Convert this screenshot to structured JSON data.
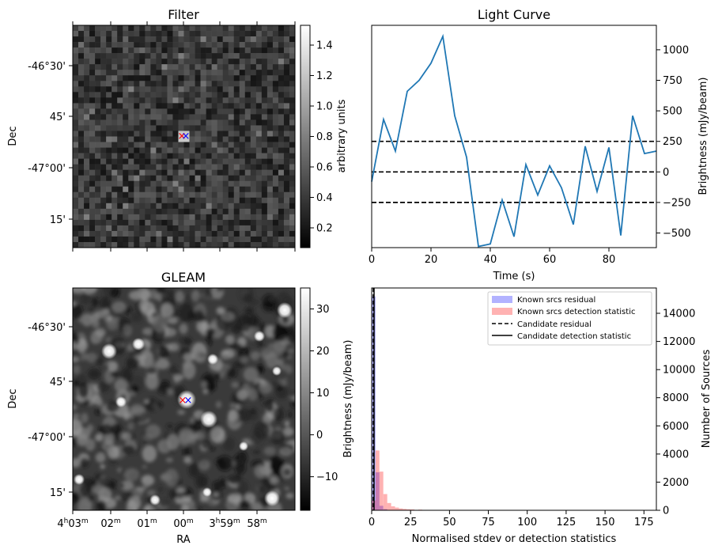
{
  "panels": {
    "filter": {
      "title": "Filter",
      "ylabel": "Dec",
      "dec_ticks": [
        "-46°30'",
        "45'",
        "-47°00'",
        "15'"
      ],
      "colorbar": {
        "label": "arbitrary units",
        "ticks": [
          "0.2",
          "0.4",
          "0.6",
          "0.8",
          "1.0",
          "1.2",
          "1.4"
        ],
        "tick_values": [
          0.2,
          0.4,
          0.6,
          0.8,
          1.0,
          1.2,
          1.4
        ],
        "range": [
          0.07,
          1.53
        ]
      }
    },
    "gleam": {
      "title": "GLEAM",
      "ylabel": "Dec",
      "xlabel": "RA",
      "dec_ticks": [
        "-46°30'",
        "45'",
        "-47°00'",
        "15'"
      ],
      "ra_ticks": [
        {
          "h": "4",
          "hs": "h",
          "m": "03",
          "ms": "m"
        },
        {
          "h": "",
          "hs": "",
          "m": "02",
          "ms": "m"
        },
        {
          "h": "",
          "hs": "",
          "m": "01",
          "ms": "m"
        },
        {
          "h": "",
          "hs": "",
          "m": "00",
          "ms": "m"
        },
        {
          "h": "3",
          "hs": "h",
          "m": "59",
          "ms": "m"
        },
        {
          "h": "",
          "hs": "",
          "m": "58",
          "ms": "m"
        }
      ],
      "colorbar": {
        "label": "Brightness (mJy/beam)",
        "ticks": [
          "−10",
          "0",
          "10",
          "20",
          "30"
        ],
        "tick_values": [
          -10,
          0,
          10,
          20,
          30
        ],
        "range": [
          -18,
          35
        ]
      }
    },
    "histogram": {
      "ylabel_left": "Brightness (mJy/beam)"
    }
  },
  "colors": {
    "line": "#1f77b4",
    "hist_blue": "#0000ff",
    "hist_red": "#ff0000",
    "marker_red": "#ff0000",
    "marker_blue": "#0000ff"
  },
  "chart_data": [
    {
      "type": "line",
      "title": "Light Curve",
      "xlabel": "Time (s)",
      "ylabel": "Brightness (mJy/beam)",
      "xlim": [
        0,
        96
      ],
      "ylim": [
        -620,
        1200
      ],
      "xticks": [
        0,
        20,
        40,
        60,
        80
      ],
      "yticks": [
        -500,
        -250,
        0,
        250,
        500,
        750,
        1000
      ],
      "ytick_labels": [
        "−500",
        "−250",
        "0",
        "250",
        "500",
        "750",
        "1000"
      ],
      "x": [
        0,
        4,
        8,
        12,
        16,
        20,
        24,
        28,
        32,
        36,
        40,
        44,
        48,
        52,
        56,
        60,
        64,
        68,
        72,
        76,
        80,
        84,
        88,
        92,
        96
      ],
      "y": [
        -80,
        430,
        170,
        660,
        750,
        890,
        1110,
        460,
        120,
        -610,
        -590,
        -230,
        -530,
        60,
        -190,
        50,
        -130,
        -430,
        210,
        -160,
        200,
        -520,
        460,
        150,
        170
      ],
      "hlines": [
        250,
        0,
        -250
      ]
    },
    {
      "type": "bar",
      "xlabel": "Normalised stdev or detection statistics",
      "ylabel": "Number of Sources",
      "xlim": [
        0,
        183
      ],
      "ylim": [
        0,
        15800
      ],
      "xticks": [
        0,
        25,
        50,
        75,
        100,
        125,
        150,
        175
      ],
      "yticks": [
        0,
        2000,
        4000,
        6000,
        8000,
        10000,
        12000,
        14000
      ],
      "bin_width": 2.5,
      "series": [
        {
          "name": "Known srcs residual",
          "bin_starts": [
            0,
            2.5,
            5,
            7.5,
            10,
            12.5,
            15
          ],
          "values": [
            15200,
            2700,
            320,
            80,
            25,
            10,
            5
          ]
        },
        {
          "name": "Known srcs detection statistic",
          "bin_starts": [
            0,
            2.5,
            5,
            7.5,
            10,
            12.5,
            15,
            17.5,
            20,
            22.5,
            25,
            30,
            40,
            60,
            80,
            100,
            160
          ],
          "values": [
            700,
            4250,
            2750,
            1150,
            520,
            280,
            190,
            130,
            95,
            75,
            60,
            45,
            30,
            20,
            15,
            10,
            8
          ]
        }
      ],
      "vlines": [
        {
          "name": "Candidate residual",
          "x": 1.0,
          "style": "dashed"
        },
        {
          "name": "Candidate detection statistic",
          "x": 1.5,
          "style": "solid"
        }
      ],
      "legend": "top-right"
    }
  ]
}
